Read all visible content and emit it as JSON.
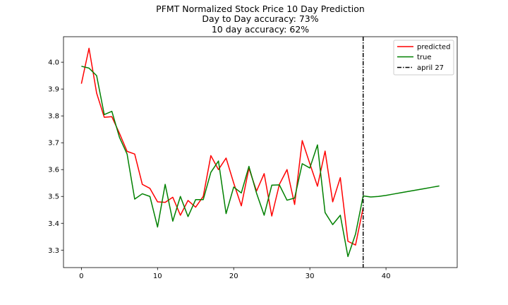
{
  "chart_data": {
    "type": "line",
    "title_lines": [
      "PFMT Normalized Stock Price 10 Day Prediction",
      "Day to Day accuracy: 73%",
      "10 day accuracy: 62%"
    ],
    "xlabel": "",
    "ylabel": "",
    "xlim": [
      -2.35,
      49.35
    ],
    "ylim": [
      3.235,
      4.095
    ],
    "xticks": [
      0,
      10,
      20,
      30,
      40
    ],
    "yticks": [
      3.3,
      3.4,
      3.5,
      3.6,
      3.7,
      3.8,
      3.9,
      4.0
    ],
    "grid": false,
    "legend_position": "top-right",
    "series": [
      {
        "name": "predicted",
        "color": "#ff0000",
        "x": [
          0,
          1,
          2,
          3,
          4,
          5,
          6,
          7,
          8,
          9,
          10,
          11,
          12,
          13,
          14,
          15,
          16,
          17,
          18,
          19,
          20,
          21,
          22,
          23,
          24,
          25,
          26,
          27,
          28,
          29,
          30,
          31,
          32,
          33,
          34,
          35,
          36,
          37
        ],
        "y": [
          3.92,
          4.052,
          3.885,
          3.795,
          3.797,
          3.735,
          3.668,
          3.658,
          3.545,
          3.53,
          3.48,
          3.478,
          3.497,
          3.43,
          3.485,
          3.46,
          3.5,
          3.652,
          3.6,
          3.643,
          3.55,
          3.465,
          3.605,
          3.52,
          3.585,
          3.427,
          3.545,
          3.6,
          3.47,
          3.708,
          3.622,
          3.538,
          3.669,
          3.48,
          3.57,
          3.333,
          3.319,
          3.458
        ]
      },
      {
        "name": "true",
        "color": "#008000",
        "x": [
          0,
          1,
          2,
          3,
          4,
          5,
          6,
          7,
          8,
          9,
          10,
          11,
          12,
          13,
          14,
          15,
          16,
          17,
          18,
          19,
          20,
          21,
          22,
          23,
          24,
          25,
          26,
          27,
          28,
          29,
          30,
          31,
          32,
          33,
          34,
          35,
          36,
          37,
          38,
          39,
          40,
          41,
          42,
          43,
          44,
          45,
          46,
          47
        ],
        "y": [
          3.985,
          3.978,
          3.95,
          3.805,
          3.817,
          3.72,
          3.658,
          3.49,
          3.51,
          3.5,
          3.386,
          3.545,
          3.408,
          3.5,
          3.425,
          3.488,
          3.488,
          3.59,
          3.632,
          3.436,
          3.535,
          3.513,
          3.612,
          3.512,
          3.43,
          3.542,
          3.543,
          3.486,
          3.494,
          3.622,
          3.606,
          3.692,
          3.44,
          3.395,
          3.43,
          3.276,
          3.36,
          3.502,
          3.498,
          3.5,
          3.504,
          3.509,
          3.514,
          3.519,
          3.524,
          3.529,
          3.534,
          3.539
        ]
      }
    ],
    "vline": {
      "name": "april 27",
      "x": 37,
      "color": "#000000",
      "style": "dashdot"
    }
  }
}
